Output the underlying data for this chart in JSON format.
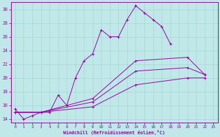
{
  "xlabel": "Windchill (Refroidissement éolien,°C)",
  "bg_color": "#c0e8e8",
  "line_color": "#9900aa",
  "grid_color": "#a8d4d4",
  "xlim": [
    -0.5,
    23.5
  ],
  "ylim": [
    13.5,
    31.0
  ],
  "yticks": [
    14,
    16,
    18,
    20,
    22,
    24,
    26,
    28,
    30
  ],
  "xticks": [
    0,
    1,
    2,
    3,
    4,
    5,
    6,
    7,
    8,
    9,
    10,
    11,
    12,
    13,
    14,
    15,
    16,
    17,
    18,
    19,
    20,
    21,
    22,
    23
  ],
  "series": [
    {
      "x": [
        0,
        1,
        2,
        3,
        4,
        5,
        6,
        7,
        8,
        9,
        10,
        11,
        12,
        13,
        14,
        15,
        16,
        17,
        18
      ],
      "y": [
        15.5,
        14.0,
        14.5,
        15.0,
        15.0,
        17.5,
        16.0,
        20.0,
        22.5,
        23.5,
        27.0,
        26.0,
        26.0,
        28.5,
        30.5,
        29.5,
        28.5,
        27.5,
        25.0
      ]
    },
    {
      "x": [
        0,
        3,
        9,
        14,
        20,
        22
      ],
      "y": [
        15.0,
        15.0,
        17.0,
        22.5,
        23.0,
        20.5
      ]
    },
    {
      "x": [
        0,
        3,
        9,
        14,
        20,
        22
      ],
      "y": [
        15.0,
        15.0,
        16.5,
        21.0,
        21.5,
        20.5
      ]
    },
    {
      "x": [
        0,
        3,
        9,
        14,
        20,
        22
      ],
      "y": [
        15.0,
        15.0,
        15.8,
        19.0,
        20.0,
        20.0
      ]
    }
  ]
}
